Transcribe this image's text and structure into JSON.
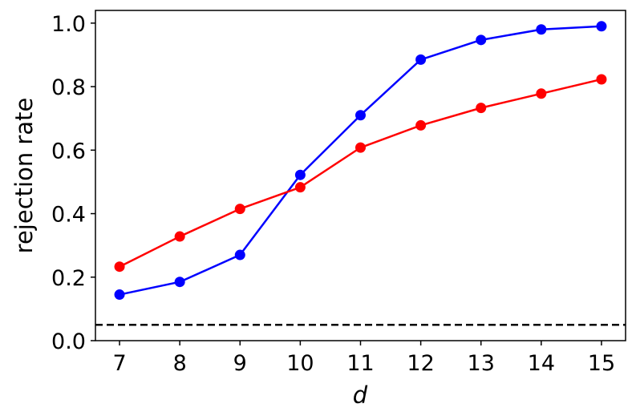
{
  "chart_data": {
    "type": "line",
    "title": "",
    "xlabel": "d",
    "ylabel": "rejection rate",
    "x": [
      7,
      8,
      9,
      10,
      11,
      12,
      13,
      14,
      15
    ],
    "xticks": [
      "7",
      "8",
      "9",
      "10",
      "11",
      "12",
      "13",
      "14",
      "15"
    ],
    "yticks": [
      "0.0",
      "0.2",
      "0.4",
      "0.6",
      "0.8",
      "1.0"
    ],
    "xlim": [
      6.6,
      15.4
    ],
    "ylim": [
      0.0,
      1.04
    ],
    "grid": false,
    "series": [
      {
        "color": "#0000ff",
        "values": [
          0.145,
          0.185,
          0.27,
          0.522,
          0.71,
          0.885,
          0.947,
          0.98,
          0.99
        ]
      },
      {
        "color": "#ff0000",
        "values": [
          0.233,
          0.328,
          0.415,
          0.483,
          0.608,
          0.678,
          0.733,
          0.778,
          0.823
        ]
      }
    ],
    "reference_lines": [
      {
        "axis": "y",
        "value": 0.05,
        "style": "dashed",
        "color": "#000000"
      }
    ]
  }
}
